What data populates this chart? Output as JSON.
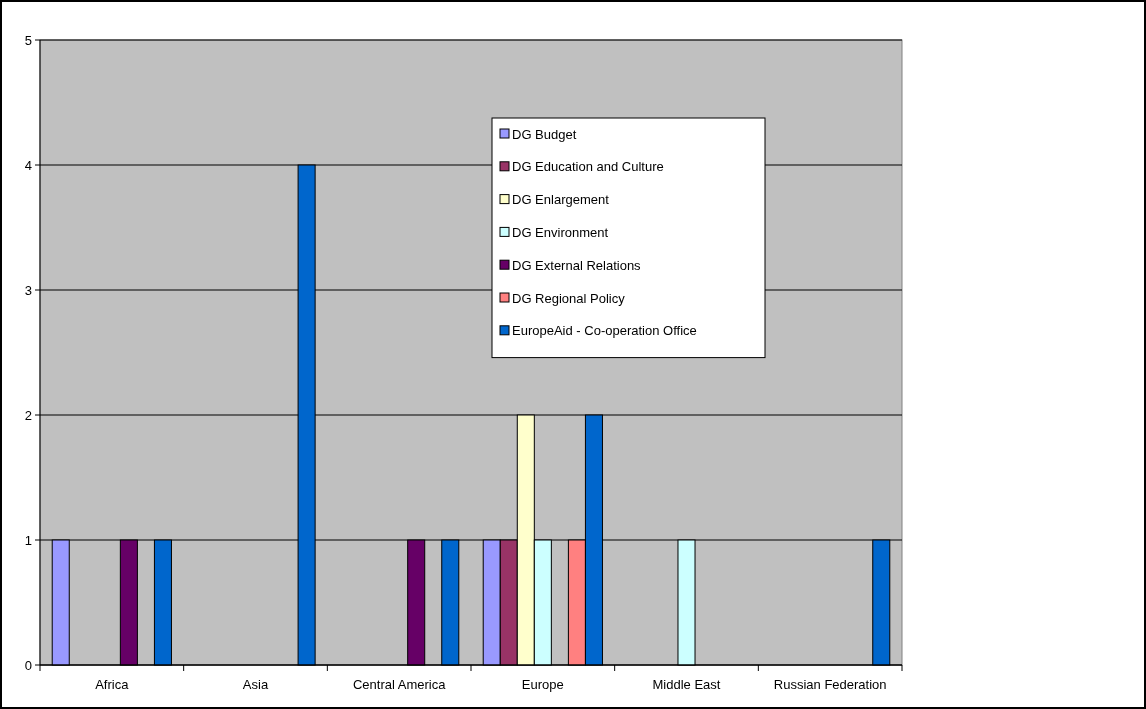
{
  "chart_data": {
    "type": "bar",
    "categories": [
      "Africa",
      "Asia",
      "Central America",
      "Europe",
      "Middle East",
      "Russian Federation"
    ],
    "series": [
      {
        "name": "DG Budget",
        "color": "#9999ff",
        "values": [
          1,
          null,
          null,
          1,
          null,
          null
        ]
      },
      {
        "name": "DG Education and Culture",
        "color": "#993366",
        "values": [
          null,
          null,
          null,
          1,
          null,
          null
        ]
      },
      {
        "name": "DG Enlargement",
        "color": "#ffffcc",
        "values": [
          null,
          null,
          null,
          2,
          null,
          null
        ]
      },
      {
        "name": "DG Environment",
        "color": "#ccffff",
        "values": [
          null,
          null,
          null,
          1,
          1,
          null
        ]
      },
      {
        "name": "DG External Relations",
        "color": "#660066",
        "values": [
          1,
          null,
          1,
          null,
          null,
          null
        ]
      },
      {
        "name": "DG Regional Policy",
        "color": "#ff8080",
        "values": [
          null,
          null,
          null,
          1,
          null,
          null
        ]
      },
      {
        "name": "EuropeAid - Co-operation Office",
        "color": "#0066cc",
        "values": [
          1,
          4,
          1,
          2,
          null,
          1
        ]
      }
    ],
    "ylim": [
      0,
      5
    ],
    "yticks": [
      0,
      1,
      2,
      3,
      4,
      5
    ],
    "grid": "y",
    "legend": "top right"
  }
}
